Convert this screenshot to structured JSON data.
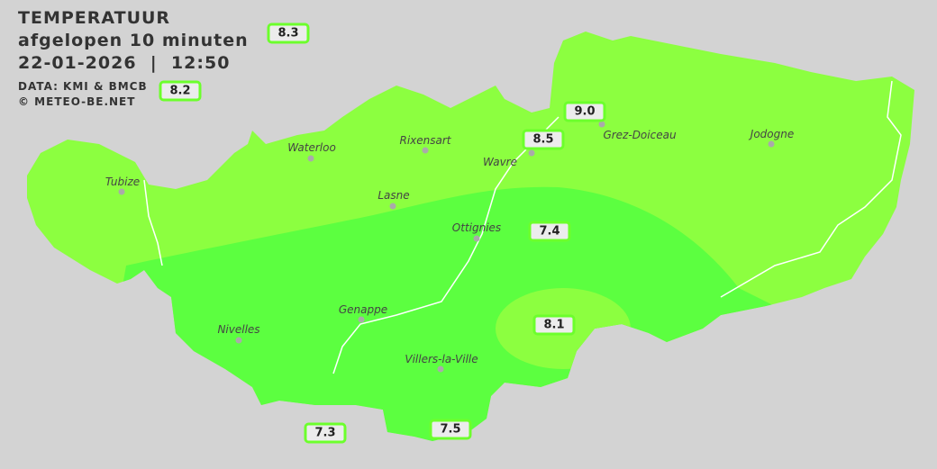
{
  "header": {
    "title": "TEMPERATUUR",
    "subtitle": "afgelopen 10 minuten",
    "datetime": "22-01-2026  |  12:50",
    "source": "DATA: KMI & BMCB",
    "copyright": "© METEO-BE.NET"
  },
  "colors": {
    "background": "#d3d3d3",
    "band_high": "#8cff40",
    "band_low": "#5cff40",
    "label_border": "#6cff2c"
  },
  "cities": [
    {
      "name": "Waterloo"
    },
    {
      "name": "Rixensart"
    },
    {
      "name": "Wavre"
    },
    {
      "name": "Tubize"
    },
    {
      "name": "Lasne"
    },
    {
      "name": "Ottignies"
    },
    {
      "name": "Jodogne"
    },
    {
      "name": "Genappe"
    },
    {
      "name": "Nivelles"
    },
    {
      "name": "Villers-la-Ville"
    },
    {
      "name": "Grez-Doiceau"
    }
  ],
  "temperatures": [
    "8.3",
    "8.2",
    "9.0",
    "8.5",
    "7.4",
    "8.1",
    "7.3",
    "7.5"
  ]
}
